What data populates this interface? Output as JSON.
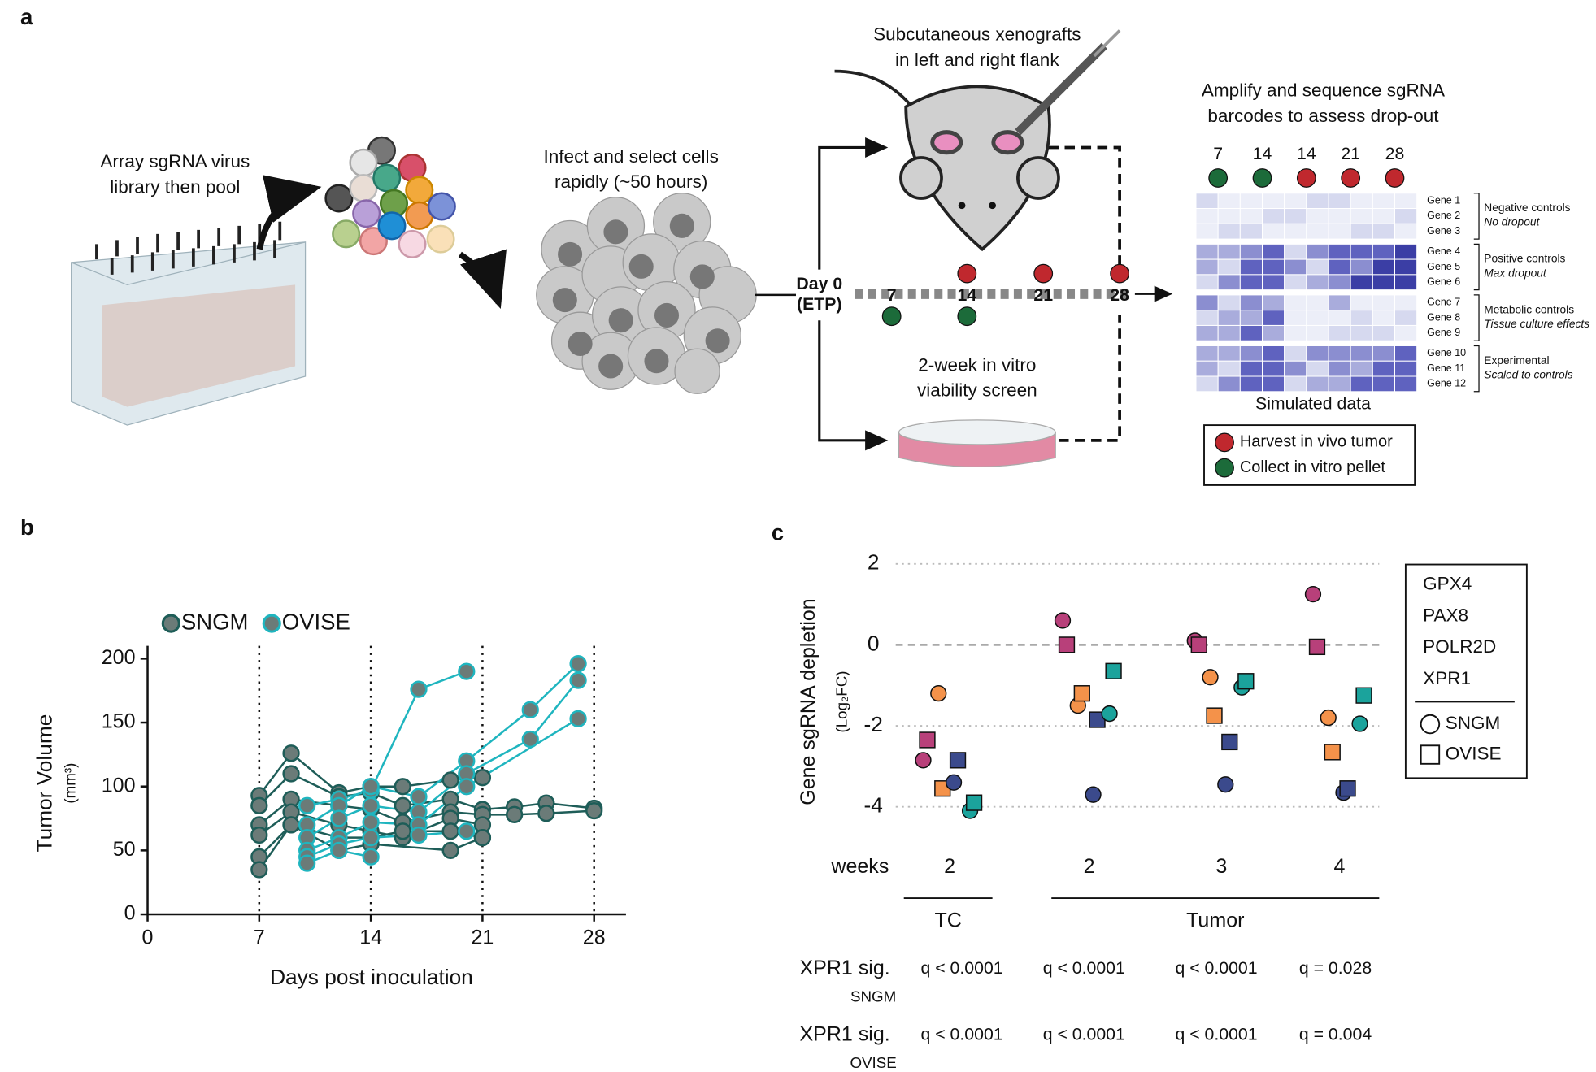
{
  "panel_labels": [
    "a",
    "b",
    "c"
  ],
  "diagram": {
    "step1": [
      "Array sgRNA virus",
      "library then pool"
    ],
    "step2": [
      "Infect and select cells",
      "rapidly (~50 hours)"
    ],
    "xenograft": [
      "Subcutaneous xenografts",
      "in left and right flank"
    ],
    "invitro": [
      "2-week in vitro",
      "viability screen"
    ],
    "sequence": [
      "Amplify and sequence sgRNA",
      "barcodes to assess drop-out"
    ],
    "timeline": {
      "start": [
        "Day 0",
        "(ETP)"
      ],
      "days": [
        "7",
        "14",
        "21",
        "28"
      ],
      "tumor": [
        false,
        true,
        true,
        true
      ],
      "pellet": [
        true,
        true,
        false,
        false
      ]
    },
    "heatmap": {
      "columns": [
        {
          "day": "7",
          "kind": "pellet"
        },
        {
          "day": "14",
          "kind": "pellet"
        },
        {
          "day": "14",
          "kind": "tumor"
        },
        {
          "day": "21",
          "kind": "tumor"
        },
        {
          "day": "28",
          "kind": "tumor"
        }
      ],
      "genes": [
        "Gene 1",
        "Gene 2",
        "Gene 3",
        "Gene 4",
        "Gene 5",
        "Gene 6",
        "Gene 7",
        "Gene 8",
        "Gene 9",
        "Gene 10",
        "Gene 11",
        "Gene 12"
      ],
      "groups": [
        [
          "Negative controls",
          "No dropout"
        ],
        [
          "Positive controls",
          "Max dropout"
        ],
        [
          "Metabolic controls",
          "Tissue culture effects"
        ],
        [
          "Experimental",
          "Scaled to controls"
        ]
      ],
      "caption": "Simulated data"
    },
    "legend": {
      "tumor": "Harvest in vivo tumor",
      "pellet": "Collect in vitro pellet"
    },
    "colors": {
      "tumor": "#c0282e",
      "pellet": "#1c6b3a"
    }
  },
  "chart_data": [
    {
      "type": "line",
      "ylabel": "Tumor Volume",
      "ylabel_unit": "(mm³)",
      "xlabel": "Days post inoculation",
      "xlim": [
        0,
        30
      ],
      "xticks": [
        0,
        7,
        14,
        21,
        28
      ],
      "ylim": [
        0,
        210
      ],
      "yticks": [
        0,
        50,
        100,
        150,
        200
      ],
      "vlines": [
        7,
        14,
        21,
        28
      ],
      "groups": [
        {
          "name": "SNGM",
          "color": "#1e5d58",
          "fill": "#6b7b78",
          "mice": [
            {
              "x": [
                7,
                9,
                12,
                14,
                16,
                19,
                21
              ],
              "values": [
                93,
                126,
                95,
                100,
                100,
                105,
                107
              ]
            },
            {
              "x": [
                7,
                9,
                12,
                14,
                16,
                19,
                21,
                23,
                25,
                28
              ],
              "values": [
                85,
                110,
                92,
                95,
                85,
                90,
                82,
                84,
                87,
                83
              ]
            },
            {
              "x": [
                7,
                9,
                12,
                14,
                16,
                19,
                21,
                23,
                25,
                28
              ],
              "values": [
                70,
                90,
                85,
                82,
                72,
                80,
                78,
                78,
                79,
                81
              ]
            },
            {
              "x": [
                7,
                9,
                12,
                14,
                16,
                19,
                21
              ],
              "values": [
                62,
                80,
                70,
                65,
                60,
                75,
                70
              ]
            },
            {
              "x": [
                7,
                9,
                12,
                14,
                16,
                19,
                21
              ],
              "values": [
                45,
                70,
                60,
                60,
                65,
                65,
                60
              ]
            },
            {
              "x": [
                7,
                9,
                12,
                14,
                19,
                21
              ],
              "values": [
                35,
                70,
                50,
                55,
                50,
                60
              ]
            }
          ]
        },
        {
          "name": "OVISE",
          "color": "#1fb5bf",
          "fill": "#6b7b78",
          "mice": [
            {
              "x": [
                10,
                12,
                14,
                17,
                20
              ],
              "values": [
                85,
                90,
                97,
                176,
                190
              ]
            },
            {
              "x": [
                10,
                12,
                14,
                17,
                20,
                24,
                27
              ],
              "values": [
                70,
                85,
                100,
                92,
                120,
                160,
                196
              ]
            },
            {
              "x": [
                10,
                12,
                14,
                17,
                20,
                24,
                27
              ],
              "values": [
                60,
                75,
                85,
                80,
                110,
                137,
                183
              ]
            },
            {
              "x": [
                10,
                12,
                14,
                17,
                20,
                27
              ],
              "values": [
                50,
                60,
                72,
                70,
                100,
                153
              ]
            },
            {
              "x": [
                10,
                12,
                14,
                17,
                20
              ],
              "values": [
                45,
                55,
                60,
                62,
                65
              ]
            },
            {
              "x": [
                10,
                12,
                14
              ],
              "values": [
                40,
                50,
                45
              ]
            }
          ]
        }
      ]
    },
    {
      "type": "dot",
      "ylabel": "Gene sgRNA depletion",
      "ylabel_unit": "(Log₂FC)",
      "ylim": [
        -4.6,
        2.2
      ],
      "yticks": [
        -4,
        -2,
        0,
        2
      ],
      "row_label": "weeks",
      "categories": [
        "2",
        "2",
        "3",
        "4"
      ],
      "groups": [
        {
          "label": "TC",
          "span": [
            0,
            0
          ]
        },
        {
          "label": "Tumor",
          "span": [
            1,
            3
          ]
        }
      ],
      "cell_lines": [
        {
          "name": "SNGM",
          "marker": "circle"
        },
        {
          "name": "OVISE",
          "marker": "square"
        }
      ],
      "series": [
        {
          "name": "GPX4",
          "color": "#b8407a",
          "values": [
            [
              -2.85,
              0.6,
              0.1,
              1.25
            ],
            [
              -2.35,
              0,
              0,
              -0.05
            ]
          ]
        },
        {
          "name": "PAX8",
          "color": "#f4924a",
          "values": [
            [
              -1.2,
              -1.5,
              -0.8,
              -1.8
            ],
            [
              -3.55,
              -1.2,
              -1.75,
              -2.65
            ]
          ]
        },
        {
          "name": "POLR2D",
          "color": "#3b4a8c",
          "values": [
            [
              -3.4,
              -3.7,
              -3.45,
              -3.65
            ],
            [
              -2.85,
              -1.85,
              -2.4,
              -3.55
            ]
          ]
        },
        {
          "name": "XPR1",
          "color": "#1ba39c",
          "values": [
            [
              -4.1,
              -1.7,
              -1.05,
              -1.95
            ],
            [
              -3.9,
              -0.65,
              -0.9,
              -1.25
            ]
          ]
        }
      ],
      "q_table": [
        {
          "label": "XPR1 sig.",
          "sub": "SNGM",
          "values": [
            "q < 0.0001",
            "q < 0.0001",
            "q < 0.0001",
            "q = 0.028"
          ]
        },
        {
          "label": "XPR1 sig.",
          "sub": "OVISE",
          "values": [
            "q < 0.0001",
            "q < 0.0001",
            "q < 0.0001",
            "q = 0.004"
          ]
        }
      ]
    }
  ]
}
